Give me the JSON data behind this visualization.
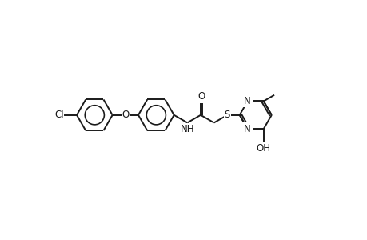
{
  "bg_color": "#ffffff",
  "line_color": "#1a1a1a",
  "line_width": 1.4,
  "font_size": 8.5,
  "figsize": [
    4.6,
    3.0
  ],
  "dpi": 100,
  "xlim": [
    0,
    9.2
  ],
  "ylim": [
    0,
    6.0
  ]
}
